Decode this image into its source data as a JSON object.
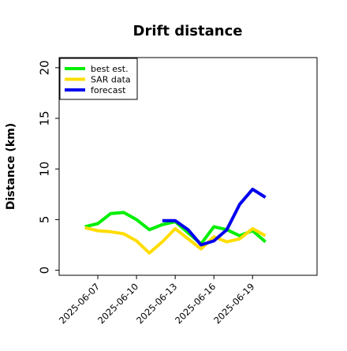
{
  "chart_data": {
    "type": "line",
    "title": "Drift distance",
    "xlabel": "",
    "ylabel": "Distance (km)",
    "xlim": [
      "2025-06-04",
      "2025-06-24"
    ],
    "ylim": [
      -0.5,
      21
    ],
    "xticks": [
      "2025-06-07",
      "2025-06-10",
      "2025-06-13",
      "2025-06-16",
      "2025-06-19"
    ],
    "yticks": [
      0,
      5,
      10,
      15,
      20
    ],
    "grid": false,
    "legend": {
      "position": "top-left"
    },
    "series": [
      {
        "name": "best est.",
        "color": "#00ee00",
        "x": [
          "2025-06-06",
          "2025-06-07",
          "2025-06-08",
          "2025-06-09",
          "2025-06-10",
          "2025-06-11",
          "2025-06-12",
          "2025-06-13",
          "2025-06-14",
          "2025-06-15",
          "2025-06-16",
          "2025-06-17",
          "2025-06-18",
          "2025-06-19",
          "2025-06-20"
        ],
        "y": [
          4.3,
          4.6,
          5.6,
          5.7,
          5.0,
          4.0,
          4.5,
          4.8,
          3.7,
          2.6,
          4.3,
          4.0,
          3.4,
          3.9,
          2.8
        ]
      },
      {
        "name": "SAR data",
        "color": "#ffdd00",
        "x": [
          "2025-06-06",
          "2025-06-07",
          "2025-06-08",
          "2025-06-09",
          "2025-06-10",
          "2025-06-11",
          "2025-06-12",
          "2025-06-13",
          "2025-06-14",
          "2025-06-15",
          "2025-06-16",
          "2025-06-17",
          "2025-06-18",
          "2025-06-19",
          "2025-06-20"
        ],
        "y": [
          4.2,
          3.9,
          3.8,
          3.6,
          2.9,
          1.7,
          2.8,
          4.1,
          3.1,
          2.1,
          3.3,
          2.8,
          3.1,
          4.1,
          3.4
        ]
      },
      {
        "name": "forecast",
        "color": "#0000ee",
        "x": [
          "2025-06-12",
          "2025-06-13",
          "2025-06-14",
          "2025-06-15",
          "2025-06-16",
          "2025-06-17",
          "2025-06-18",
          "2025-06-19",
          "2025-06-20"
        ],
        "y": [
          4.9,
          4.9,
          4.0,
          2.5,
          2.9,
          4.0,
          6.5,
          8.0,
          7.2
        ]
      }
    ]
  }
}
